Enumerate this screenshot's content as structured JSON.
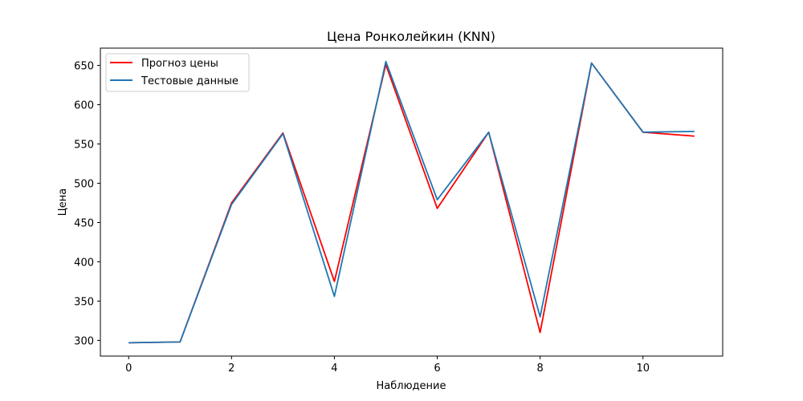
{
  "chart_data": {
    "type": "line",
    "title": "Цена Ронколейкин (KNN)",
    "xlabel": "Наблюдение",
    "ylabel": "Цена",
    "xlim": [
      -0.55,
      11.55
    ],
    "ylim": [
      280,
      672
    ],
    "x_ticks": [
      "0",
      "2",
      "4",
      "6",
      "8",
      "10"
    ],
    "y_ticks": [
      "300",
      "350",
      "400",
      "450",
      "500",
      "550",
      "600",
      "650"
    ],
    "grid": false,
    "legend_position": "top-left",
    "x": [
      0,
      1,
      2,
      3,
      4,
      5,
      6,
      7,
      8,
      9,
      10,
      11
    ],
    "series": [
      {
        "name": "Прогноз цены",
        "color": "#ff0000",
        "values": [
          297,
          298,
          475,
          564,
          375,
          651,
          468,
          565,
          310,
          653,
          565,
          560
        ]
      },
      {
        "name": "Тестовые данные",
        "color": "#1f77b4",
        "values": [
          297,
          298,
          473,
          563,
          356,
          655,
          479,
          565,
          330,
          653,
          565,
          566
        ]
      }
    ]
  }
}
